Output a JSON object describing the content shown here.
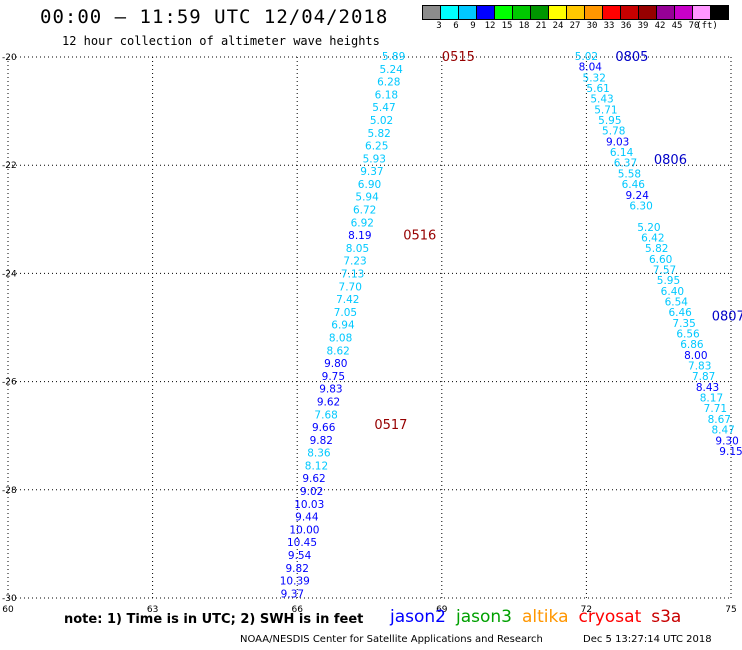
{
  "header": {
    "title": "00:00 – 11:59 UTC 12/04/2018",
    "subtitle": "12 hour collection of altimeter wave heights"
  },
  "colorbar": {
    "colors": [
      "#8c8c8c",
      "#00ffff",
      "#00c8ff",
      "#0000ff",
      "#00ff00",
      "#00c800",
      "#009600",
      "#ffff00",
      "#ffc800",
      "#ff9600",
      "#ff0000",
      "#c80000",
      "#960000",
      "#960096",
      "#c800c8",
      "#ff96ff",
      "#000000"
    ],
    "labels": [
      "3",
      "6",
      "9",
      "12",
      "15",
      "18",
      "21",
      "24",
      "27",
      "30",
      "33",
      "36",
      "39",
      "42",
      "45",
      "70",
      "(ft)"
    ]
  },
  "chart_data": {
    "type": "scatter",
    "title": "00:00 – 11:59 UTC 12/04/2018",
    "subtitle": "12 hour collection of altimeter wave heights",
    "xlim": [
      60,
      75
    ],
    "ylim": [
      -30,
      -20
    ],
    "x_ticks": [
      "60",
      "63",
      "66",
      "69",
      "72",
      "75"
    ],
    "y_ticks": [
      "-20",
      "-22",
      "-24",
      "-26",
      "-28",
      "-30"
    ],
    "grid": true,
    "track_a": {
      "values": [
        "5.89",
        "5.24",
        "6.28",
        "6.18",
        "5.47",
        "5.02",
        "5.82",
        "6.25",
        "5.93",
        "9.37",
        "6.90",
        "5.94",
        "6.72",
        "6.92",
        "8.19",
        "8.05",
        "7.23",
        "7.13",
        "7.70",
        "7.42",
        "7.05",
        "6.94",
        "8.08",
        "8.62",
        "9.80",
        "9.75",
        "9.83",
        "9.62",
        "7.68",
        "9.66",
        "9.82",
        "8.36",
        "8.12",
        "9.62",
        "9.02",
        "10.03",
        "9.44",
        "10.00",
        "10.45",
        "9.54",
        "9.82",
        "10.39",
        "9.37"
      ],
      "colors": [
        "#00c8ff",
        "#00c8ff",
        "#00c8ff",
        "#00c8ff",
        "#00c8ff",
        "#00c8ff",
        "#00c8ff",
        "#00c8ff",
        "#00c8ff",
        "#00c8ff",
        "#00c8ff",
        "#00c8ff",
        "#00c8ff",
        "#00c8ff",
        "#0000ff",
        "#00c8ff",
        "#00c8ff",
        "#00c8ff",
        "#00c8ff",
        "#00c8ff",
        "#00c8ff",
        "#00c8ff",
        "#00c8ff",
        "#00c8ff",
        "#0000ff",
        "#0000ff",
        "#0000ff",
        "#0000ff",
        "#00c8ff",
        "#0000ff",
        "#0000ff",
        "#00c8ff",
        "#00c8ff",
        "#0000ff",
        "#0000ff",
        "#0000ff",
        "#0000ff",
        "#0000ff",
        "#0000ff",
        "#0000ff",
        "#0000ff",
        "#0000ff",
        "#0000ff"
      ],
      "lat_start": -20.0,
      "lat_step": 0.2365,
      "lon_start": 68.0,
      "lon_end": 65.9
    },
    "track_b": {
      "values": [
        "5.02",
        "8.04",
        "5.32",
        "5.61",
        "5.43",
        "5.71",
        "5.95",
        "5.78",
        "9.03",
        "6.14",
        "6.37",
        "5.58",
        "6.46",
        "9.24",
        "6.30",
        "5.20",
        "6.42",
        "5.82",
        "6.60",
        "7.57",
        "5.95",
        "6.40",
        "6.54",
        "6.46",
        "7.35",
        "6.56",
        "6.86",
        "8.00",
        "7.83",
        "7.87",
        "8.43",
        "8.17",
        "7.71",
        "8.67",
        "8.47",
        "9.30",
        "9.15"
      ],
      "colors": [
        "#00c8ff",
        "#0000ff",
        "#00c8ff",
        "#00c8ff",
        "#00c8ff",
        "#00c8ff",
        "#00c8ff",
        "#00c8ff",
        "#0000ff",
        "#00c8ff",
        "#00c8ff",
        "#00c8ff",
        "#00c8ff",
        "#0000ff",
        "#00c8ff",
        "#00c8ff",
        "#00c8ff",
        "#00c8ff",
        "#00c8ff",
        "#00c8ff",
        "#00c8ff",
        "#00c8ff",
        "#00c8ff",
        "#00c8ff",
        "#00c8ff",
        "#00c8ff",
        "#00c8ff",
        "#0000ff",
        "#00c8ff",
        "#00c8ff",
        "#0000ff",
        "#00c8ff",
        "#00c8ff",
        "#00c8ff",
        "#00c8ff",
        "#0000ff",
        "#0000ff"
      ],
      "gap_after": 14,
      "lat_start": -20.0,
      "lat_end": -27.3,
      "lon_start": 72.0,
      "lon_end": 75.0
    },
    "time_labels": [
      {
        "text": "0515",
        "lon": 69.0,
        "lat": -20.0,
        "color": "#960000"
      },
      {
        "text": "0516",
        "lon": 68.2,
        "lat": -23.3,
        "color": "#960000"
      },
      {
        "text": "0517",
        "lon": 67.6,
        "lat": -26.8,
        "color": "#960000"
      },
      {
        "text": "0805",
        "lon": 72.6,
        "lat": -20.0,
        "color": "#0000c8"
      },
      {
        "text": "0806",
        "lon": 73.4,
        "lat": -21.9,
        "color": "#0000c8"
      },
      {
        "text": "0807",
        "lon": 74.6,
        "lat": -24.8,
        "color": "#0000c8"
      }
    ]
  },
  "footer": {
    "note": "note: 1) Time is in UTC; 2) SWH is in feet",
    "satellites": [
      {
        "name": "jason2",
        "color": "#0000ff"
      },
      {
        "name": "jason3",
        "color": "#00a000"
      },
      {
        "name": "altika",
        "color": "#ff9600"
      },
      {
        "name": "cryosat",
        "color": "#ff0000"
      },
      {
        "name": "s3a",
        "color": "#c80000"
      }
    ],
    "credit": "NOAA/NESDIS Center for Satellite Applications and Research",
    "timestamp": "Dec  5 13:27:14 UTC 2018"
  }
}
